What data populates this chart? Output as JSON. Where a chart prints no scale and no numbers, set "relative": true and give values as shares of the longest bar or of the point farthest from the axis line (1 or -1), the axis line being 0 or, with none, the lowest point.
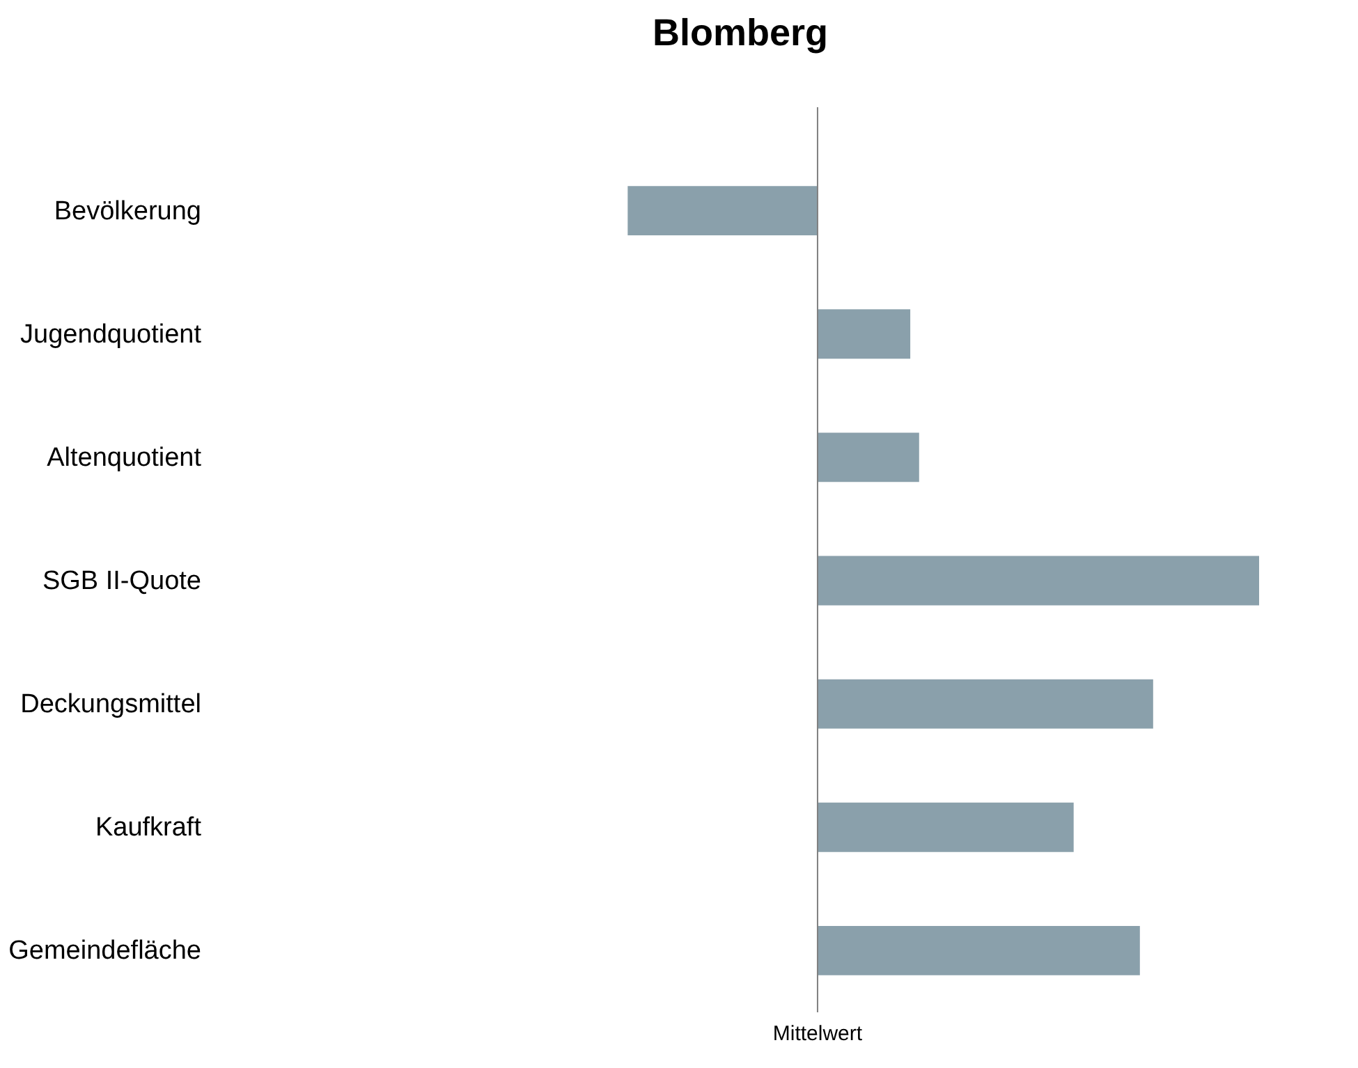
{
  "chart_data": {
    "type": "bar",
    "title": "Blomberg",
    "orientation": "horizontal",
    "relative": true,
    "categories": [
      "Bevölkerung",
      "Jugendquotient",
      "Altenquotient",
      "SGB II-Quote",
      "Deckungsmittel",
      "Kaufkraft",
      "Gemeindefläche"
    ],
    "values": [
      -0.43,
      0.21,
      0.23,
      1,
      0.76,
      0.58,
      0.73
    ],
    "color": "#8aa0ab",
    "ref_lines": [
      {
        "axis": "x",
        "value": 0,
        "label": "Mittelwert",
        "color": "#808080"
      }
    ],
    "grid": false
  }
}
